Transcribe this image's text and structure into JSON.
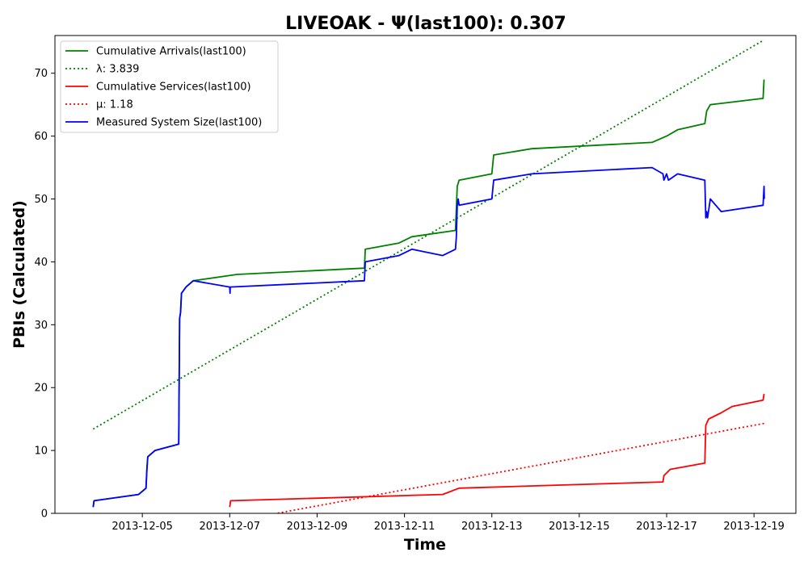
{
  "chart_data": {
    "type": "line",
    "title": "LIVEOAK -  Ψ(last100): 0.307",
    "xlabel": "Time",
    "ylabel": "PBIs (Calculated)",
    "xlim": [
      "2013-12-03T00:00",
      "2013-12-19T23:00"
    ],
    "ylim": [
      0,
      76
    ],
    "x_ticks": [
      "2013-12-05",
      "2013-12-07",
      "2013-12-09",
      "2013-12-11",
      "2013-12-13",
      "2013-12-15",
      "2013-12-17",
      "2013-12-19"
    ],
    "y_ticks": [
      0,
      10,
      20,
      30,
      40,
      50,
      60,
      70
    ],
    "grid": false,
    "legend_placement": "upper-left",
    "series": [
      {
        "name": "Cumulative Arrivals(last100)",
        "style": "solid",
        "color": "#008000",
        "points": [
          [
            "2013-12-03T21:00",
            1
          ],
          [
            "2013-12-03T21:30",
            2
          ],
          [
            "2013-12-04T22:00",
            3
          ],
          [
            "2013-12-05T02:00",
            4
          ],
          [
            "2013-12-05T02:30",
            7
          ],
          [
            "2013-12-05T03:00",
            9
          ],
          [
            "2013-12-05T07:00",
            10
          ],
          [
            "2013-12-05T20:00",
            11
          ],
          [
            "2013-12-05T20:30",
            31
          ],
          [
            "2013-12-05T21:00",
            32
          ],
          [
            "2013-12-05T21:30",
            35
          ],
          [
            "2013-12-06T00:00",
            36
          ],
          [
            "2013-12-06T04:00",
            37
          ],
          [
            "2013-12-07T04:00",
            38
          ],
          [
            "2013-12-10T02:00",
            39
          ],
          [
            "2013-12-10T02:30",
            42
          ],
          [
            "2013-12-10T21:00",
            43
          ],
          [
            "2013-12-11T04:00",
            44
          ],
          [
            "2013-12-12T04:00",
            45
          ],
          [
            "2013-12-12T05:00",
            52
          ],
          [
            "2013-12-12T06:00",
            53
          ],
          [
            "2013-12-13T00:00",
            54
          ],
          [
            "2013-12-13T01:00",
            57
          ],
          [
            "2013-12-13T22:00",
            58
          ],
          [
            "2013-12-16T16:00",
            59
          ],
          [
            "2013-12-17T00:00",
            60
          ],
          [
            "2013-12-17T06:00",
            61
          ],
          [
            "2013-12-17T21:00",
            62
          ],
          [
            "2013-12-17T22:00",
            64
          ],
          [
            "2013-12-18T00:00",
            65
          ],
          [
            "2013-12-19T05:00",
            66
          ],
          [
            "2013-12-19T05:30",
            69
          ]
        ]
      },
      {
        "name": "λ: 3.839",
        "style": "dotted",
        "color": "#008000",
        "points": [
          [
            "2013-12-03T21:00",
            13.4
          ],
          [
            "2013-12-19T05:30",
            75.3
          ]
        ]
      },
      {
        "name": "Cumulative Services(last100)",
        "style": "solid",
        "color": "#ff0000",
        "points": [
          [
            "2013-12-07T00:00",
            1
          ],
          [
            "2013-12-07T00:30",
            2
          ],
          [
            "2013-12-11T21:00",
            3
          ],
          [
            "2013-12-12T06:00",
            4
          ],
          [
            "2013-12-16T22:00",
            5
          ],
          [
            "2013-12-16T22:30",
            6
          ],
          [
            "2013-12-17T02:00",
            7
          ],
          [
            "2013-12-17T21:00",
            8
          ],
          [
            "2013-12-17T21:30",
            14
          ],
          [
            "2013-12-17T23:00",
            15
          ],
          [
            "2013-12-18T06:00",
            16
          ],
          [
            "2013-12-18T12:00",
            17
          ],
          [
            "2013-12-19T05:00",
            18
          ],
          [
            "2013-12-19T05:30",
            19
          ]
        ]
      },
      {
        "name": "μ: 1.18",
        "style": "dotted",
        "color": "#ff0000",
        "points": [
          [
            "2013-12-07T22:00",
            -0.2
          ],
          [
            "2013-12-19T05:30",
            14.3
          ]
        ]
      },
      {
        "name": "Measured System Size(last100)",
        "style": "solid",
        "color": "#0000ff",
        "points": [
          [
            "2013-12-03T21:00",
            1
          ],
          [
            "2013-12-03T21:30",
            2
          ],
          [
            "2013-12-04T22:00",
            3
          ],
          [
            "2013-12-05T02:00",
            4
          ],
          [
            "2013-12-05T02:30",
            7
          ],
          [
            "2013-12-05T03:00",
            9
          ],
          [
            "2013-12-05T07:00",
            10
          ],
          [
            "2013-12-05T20:00",
            11
          ],
          [
            "2013-12-05T20:30",
            31
          ],
          [
            "2013-12-05T21:00",
            32
          ],
          [
            "2013-12-05T21:30",
            35
          ],
          [
            "2013-12-06T00:00",
            36
          ],
          [
            "2013-12-06T04:00",
            37
          ],
          [
            "2013-12-07T00:00",
            36
          ],
          [
            "2013-12-07T00:10",
            35
          ],
          [
            "2013-12-07T00:20",
            36
          ],
          [
            "2013-12-10T02:00",
            37
          ],
          [
            "2013-12-10T02:30",
            40
          ],
          [
            "2013-12-10T21:00",
            41
          ],
          [
            "2013-12-11T04:00",
            42
          ],
          [
            "2013-12-11T21:00",
            41
          ],
          [
            "2013-12-12T04:00",
            42
          ],
          [
            "2013-12-12T04:30",
            44
          ],
          [
            "2013-12-12T05:00",
            49
          ],
          [
            "2013-12-12T05:30",
            50
          ],
          [
            "2013-12-12T06:00",
            49
          ],
          [
            "2013-12-13T00:00",
            50
          ],
          [
            "2013-12-13T01:00",
            53
          ],
          [
            "2013-12-13T22:00",
            54
          ],
          [
            "2013-12-16T16:00",
            55
          ],
          [
            "2013-12-16T22:00",
            54
          ],
          [
            "2013-12-16T22:30",
            53
          ],
          [
            "2013-12-17T00:00",
            54
          ],
          [
            "2013-12-17T01:00",
            53
          ],
          [
            "2013-12-17T06:00",
            54
          ],
          [
            "2013-12-17T21:00",
            53
          ],
          [
            "2013-12-17T21:30",
            47
          ],
          [
            "2013-12-17T22:00",
            48
          ],
          [
            "2013-12-17T22:30",
            47
          ],
          [
            "2013-12-18T00:00",
            50
          ],
          [
            "2013-12-18T06:00",
            48
          ],
          [
            "2013-12-19T05:00",
            49
          ],
          [
            "2013-12-19T05:30",
            52
          ],
          [
            "2013-12-19T05:40",
            50
          ]
        ]
      }
    ]
  }
}
